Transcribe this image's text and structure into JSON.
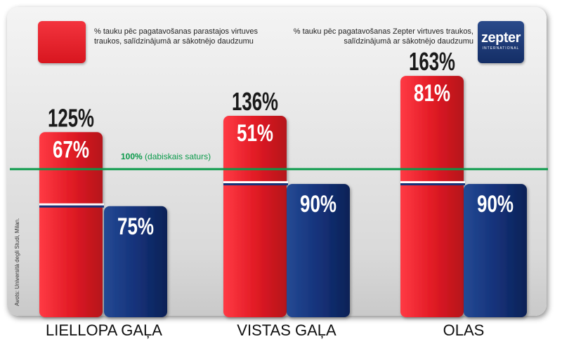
{
  "legend": {
    "standard": "% tauku pēc pagatavošanas parastajos virtuves traukos, salīdzinājumā ar sākotnējo daudzumu",
    "zepter": "% tauku pēc pagatavošanas Zepter virtuves traukos, salīdzinājumā ar sākotnējo daudzumu",
    "logo_text": "zepter",
    "logo_subtext": "INTERNATIONAL"
  },
  "baseline_label": {
    "value": "100%",
    "note": "(dabiskais saturs)"
  },
  "source": "Avots: Università degli Studi, Milan.",
  "colors": {
    "standard": "#e21b25",
    "zepter": "#15327a",
    "baseline": "#0a9a4a"
  },
  "chart_data": {
    "type": "bar",
    "categories": [
      "LIELLOPA GAĻA",
      "VISTAS GAĻA",
      "OLAS"
    ],
    "series": [
      {
        "name": "% tauku pēc pagatavošanas parastajos virtuves traukos, salīdzinājumā ar sākotnējo daudzumu",
        "values": [
          125,
          136,
          163
        ],
        "inner_labels": [
          "67%",
          "51%",
          "81%"
        ],
        "top_labels": [
          "125%",
          "136%",
          "163%"
        ]
      },
      {
        "name": "% tauku pēc pagatavošanas Zepter virtuves traukos, salīdzinājumā ar sākotnējo daudzumu",
        "values": [
          75,
          90,
          90
        ],
        "labels": [
          "75%",
          "90%",
          "90%"
        ]
      }
    ],
    "reference_line": 100,
    "ylim": [
      0,
      170
    ]
  }
}
